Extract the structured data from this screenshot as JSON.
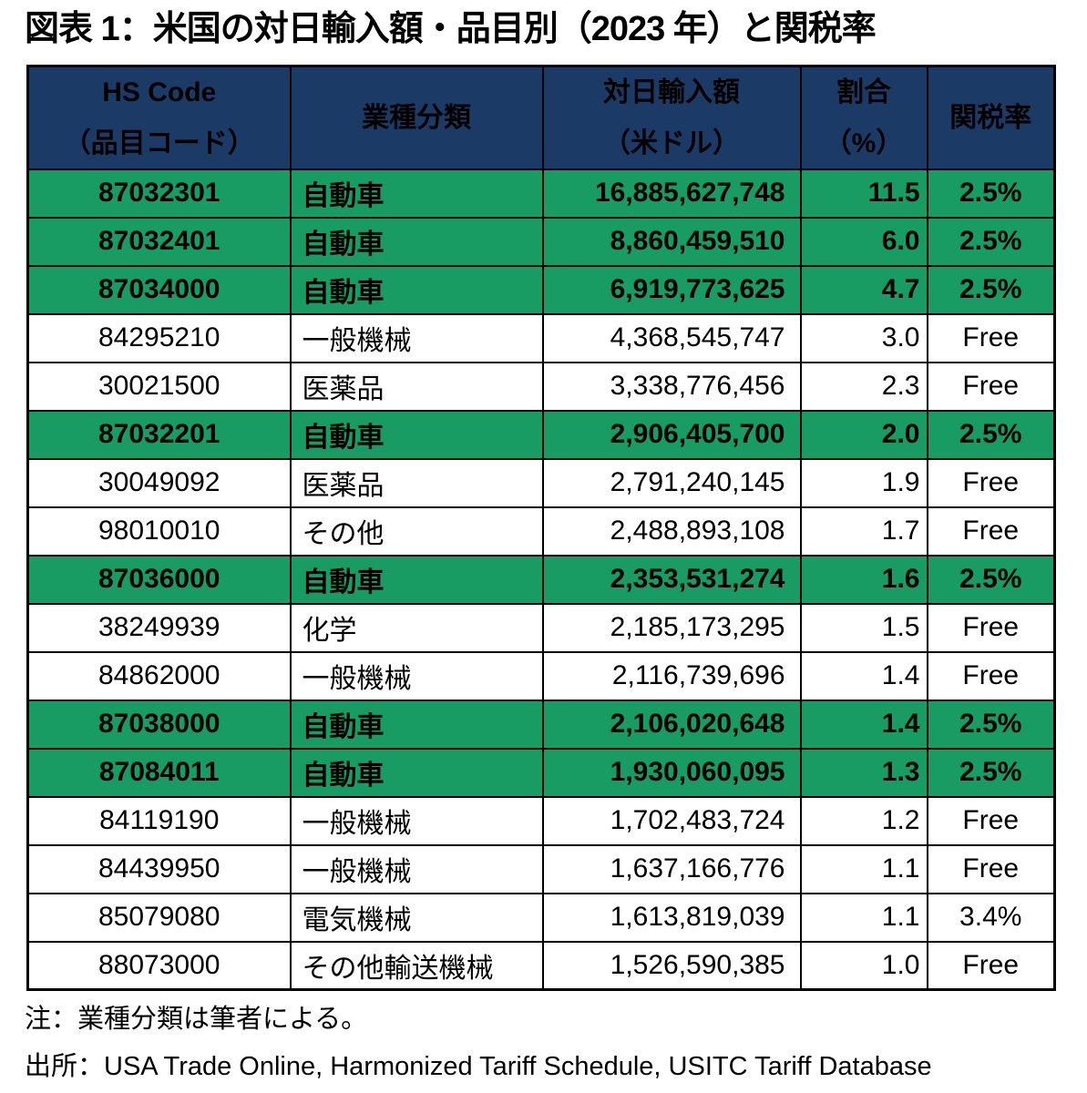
{
  "title": "図表 1：米国の対日輸入額・品目別（2023 年）と関税率",
  "table": {
    "headers": [
      {
        "line1": "HS Code",
        "line2": "（品目コード）"
      },
      {
        "line1": "業種分類",
        "line2": ""
      },
      {
        "line1": "対日輸入額",
        "line2": "（米ドル）"
      },
      {
        "line1": "割合",
        "line2": "（%）"
      },
      {
        "line1": "関税率",
        "line2": ""
      }
    ],
    "rows": [
      {
        "hs_code": "87032301",
        "category": "自動車",
        "import_value": "16,885,627,748",
        "share": "11.5",
        "tariff": "2.5%",
        "highlighted": true
      },
      {
        "hs_code": "87032401",
        "category": "自動車",
        "import_value": "8,860,459,510",
        "share": "6.0",
        "tariff": "2.5%",
        "highlighted": true
      },
      {
        "hs_code": "87034000",
        "category": "自動車",
        "import_value": "6,919,773,625",
        "share": "4.7",
        "tariff": "2.5%",
        "highlighted": true
      },
      {
        "hs_code": "84295210",
        "category": "一般機械",
        "import_value": "4,368,545,747",
        "share": "3.0",
        "tariff": "Free",
        "highlighted": false
      },
      {
        "hs_code": "30021500",
        "category": "医薬品",
        "import_value": "3,338,776,456",
        "share": "2.3",
        "tariff": "Free",
        "highlighted": false
      },
      {
        "hs_code": "87032201",
        "category": "自動車",
        "import_value": "2,906,405,700",
        "share": "2.0",
        "tariff": "2.5%",
        "highlighted": true
      },
      {
        "hs_code": "30049092",
        "category": "医薬品",
        "import_value": "2,791,240,145",
        "share": "1.9",
        "tariff": "Free",
        "highlighted": false
      },
      {
        "hs_code": "98010010",
        "category": "その他",
        "import_value": "2,488,893,108",
        "share": "1.7",
        "tariff": "Free",
        "highlighted": false
      },
      {
        "hs_code": "87036000",
        "category": "自動車",
        "import_value": "2,353,531,274",
        "share": "1.6",
        "tariff": "2.5%",
        "highlighted": true
      },
      {
        "hs_code": "38249939",
        "category": "化学",
        "import_value": "2,185,173,295",
        "share": "1.5",
        "tariff": "Free",
        "highlighted": false
      },
      {
        "hs_code": "84862000",
        "category": "一般機械",
        "import_value": "2,116,739,696",
        "share": "1.4",
        "tariff": "Free",
        "highlighted": false
      },
      {
        "hs_code": "87038000",
        "category": "自動車",
        "import_value": "2,106,020,648",
        "share": "1.4",
        "tariff": "2.5%",
        "highlighted": true
      },
      {
        "hs_code": "87084011",
        "category": "自動車",
        "import_value": "1,930,060,095",
        "share": "1.3",
        "tariff": "2.5%",
        "highlighted": true
      },
      {
        "hs_code": "84119190",
        "category": "一般機械",
        "import_value": "1,702,483,724",
        "share": "1.2",
        "tariff": "Free",
        "highlighted": false
      },
      {
        "hs_code": "84439950",
        "category": "一般機械",
        "import_value": "1,637,166,776",
        "share": "1.1",
        "tariff": "Free",
        "highlighted": false
      },
      {
        "hs_code": "85079080",
        "category": "電気機械",
        "import_value": "1,613,819,039",
        "share": "1.1",
        "tariff": "3.4%",
        "highlighted": false
      },
      {
        "hs_code": "88073000",
        "category": "その他輸送機械",
        "import_value": "1,526,590,385",
        "share": "1.0",
        "tariff": "Free",
        "highlighted": false
      }
    ]
  },
  "notes": {
    "note": "注：業種分類は筆者による。",
    "source": "出所：USA Trade Online, Harmonized Tariff Schedule, USITC Tariff Database"
  },
  "colors": {
    "header_bg": "#1C3A66",
    "header_text": "#FFFFFF",
    "highlight_row_bg": "#199B64",
    "row_bg": "#FFFFFF",
    "border": "#000000",
    "text": "#000000"
  },
  "chart_data": {
    "type": "table",
    "title": "図表 1：米国の対日輸入額・品目別（2023 年）と関税率",
    "columns": [
      "HS Code（品目コード）",
      "業種分類",
      "対日輸入額（米ドル）",
      "割合（%）",
      "関税率"
    ],
    "rows": [
      [
        "87032301",
        "自動車",
        16885627748,
        11.5,
        "2.5%"
      ],
      [
        "87032401",
        "自動車",
        8860459510,
        6.0,
        "2.5%"
      ],
      [
        "87034000",
        "自動車",
        6919773625,
        4.7,
        "2.5%"
      ],
      [
        "84295210",
        "一般機械",
        4368545747,
        3.0,
        "Free"
      ],
      [
        "30021500",
        "医薬品",
        3338776456,
        2.3,
        "Free"
      ],
      [
        "87032201",
        "自動車",
        2906405700,
        2.0,
        "2.5%"
      ],
      [
        "30049092",
        "医薬品",
        2791240145,
        1.9,
        "Free"
      ],
      [
        "98010010",
        "その他",
        2488893108,
        1.7,
        "Free"
      ],
      [
        "87036000",
        "自動車",
        2353531274,
        1.6,
        "2.5%"
      ],
      [
        "38249939",
        "化学",
        2185173295,
        1.5,
        "Free"
      ],
      [
        "84862000",
        "一般機械",
        2116739696,
        1.4,
        "Free"
      ],
      [
        "87038000",
        "自動車",
        2106020648,
        1.4,
        "2.5%"
      ],
      [
        "87084011",
        "自動車",
        1930060095,
        1.3,
        "2.5%"
      ],
      [
        "84119190",
        "一般機械",
        1702483724,
        1.2,
        "Free"
      ],
      [
        "84439950",
        "一般機械",
        1637166776,
        1.1,
        "Free"
      ],
      [
        "85079080",
        "電気機械",
        1613819039,
        1.1,
        "3.4%"
      ],
      [
        "88073000",
        "その他輸送機械",
        1526590385,
        1.0,
        "Free"
      ]
    ],
    "highlighted_rows": [
      "87032301",
      "87032401",
      "87034000",
      "87032201",
      "87036000",
      "87038000",
      "87084011"
    ],
    "highlight_meaning": "自動車 (automobile) related HS codes",
    "note": "注：業種分類は筆者による。",
    "source": "出所：USA Trade Online, Harmonized Tariff Schedule, USITC Tariff Database"
  }
}
